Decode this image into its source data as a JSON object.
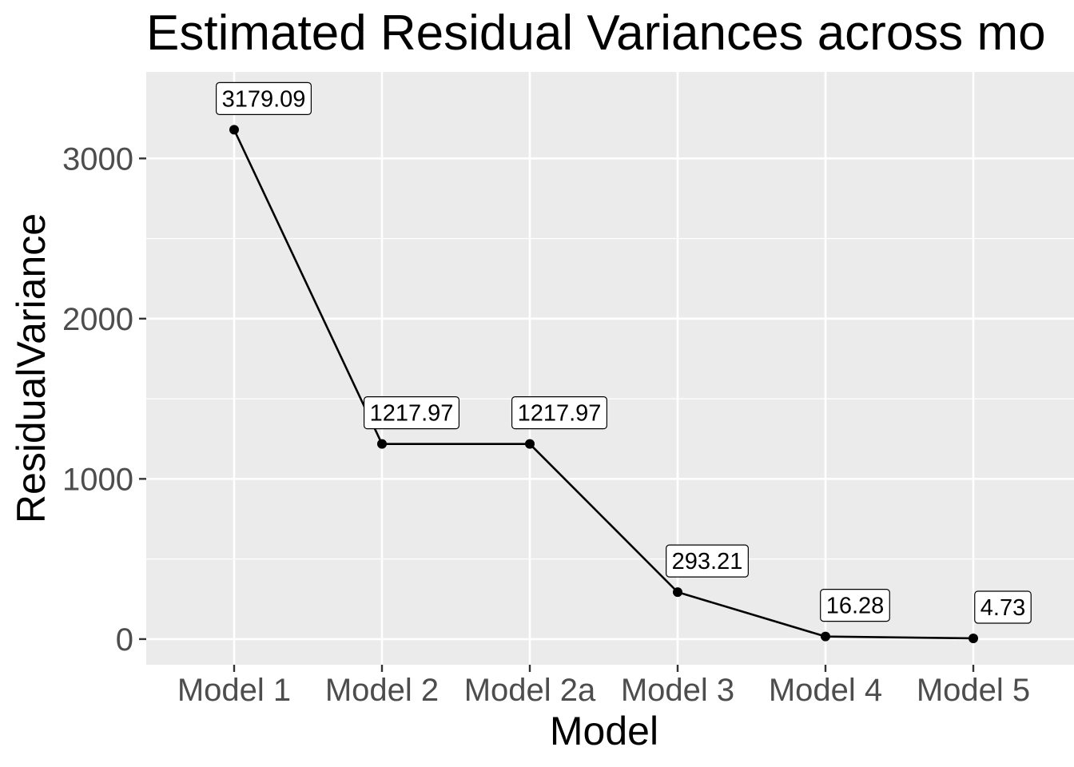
{
  "chart_data": {
    "type": "line",
    "title": "Estimated Residual Variances across mo",
    "xlabel": "Model",
    "ylabel": "ResidualVariance",
    "categories": [
      "Model 1",
      "Model 2",
      "Model 2a",
      "Model 3",
      "Model 4",
      "Model 5"
    ],
    "values": [
      3179.09,
      1217.97,
      1217.97,
      293.21,
      16.28,
      4.73
    ],
    "data_labels": [
      "3179.09",
      "1217.97",
      "1217.97",
      "293.21",
      "16.28",
      "4.73"
    ],
    "ylim": [
      -160,
      3540
    ],
    "y_ticks": [
      0,
      1000,
      2000,
      3000
    ],
    "y_tick_labels": [
      "0",
      "1000",
      "2000",
      "3000"
    ],
    "y_minor_ticks": [
      500,
      1500,
      2500
    ],
    "grid": true,
    "legend": "none",
    "colors": {
      "panel_background": "#ebebeb",
      "grid": "#ffffff",
      "line": "#000000",
      "points": "#000000",
      "tick_text": "#4d4d4d"
    }
  }
}
